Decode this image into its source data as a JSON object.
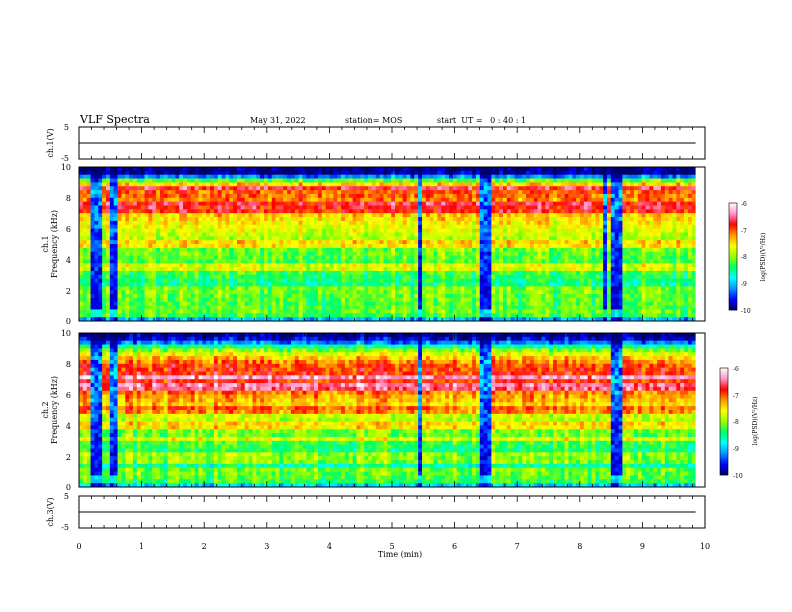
{
  "header": {
    "title": "VLF Spectra",
    "date": "May 31, 2022",
    "station": "station= MOS",
    "start": "start  UT =   0 : 40 : 1"
  },
  "chart_data": [
    {
      "type": "line",
      "panel": "ch1-waveform",
      "ylabel": "ch.1(V)",
      "ylim": [
        -5,
        5
      ],
      "yticks": [
        "5",
        "-5"
      ],
      "x": [
        0,
        2,
        4,
        6,
        8,
        9.85
      ],
      "values": [
        0,
        0,
        0,
        0,
        0,
        0
      ]
    },
    {
      "type": "heatmap",
      "panel": "ch1-spectrogram",
      "ylabel": "ch.1\nFrequency (kHz)",
      "ylim": [
        0,
        10
      ],
      "yticks": [
        "0",
        "2",
        "4",
        "6",
        "8",
        "10"
      ],
      "xlim": [
        0,
        10
      ],
      "data_end_min": 9.85,
      "colorbar": {
        "label": "log(PSD)(V²/Hz)",
        "range": [
          -10,
          -6
        ],
        "ticks": [
          "-6",
          "-7",
          "-8",
          "-9",
          "-10"
        ]
      },
      "freq_profile_kHz": [
        0,
        0.5,
        1,
        2,
        3,
        4,
        5,
        6,
        7,
        8,
        8.5,
        9,
        9.5,
        10
      ],
      "freq_profile_log_psd": [
        -9.2,
        -8.6,
        -8.7,
        -8.6,
        -8.3,
        -8.2,
        -8.0,
        -7.7,
        -7.4,
        -7.1,
        -7.0,
        -7.6,
        -9.8,
        -10
      ],
      "quiet_intervals_min": [
        [
          0.2,
          0.38
        ],
        [
          0.5,
          0.6
        ],
        [
          5.4,
          5.5
        ],
        [
          6.4,
          6.6
        ],
        [
          8.4,
          8.45
        ],
        [
          8.5,
          8.7
        ]
      ],
      "line_bands_kHz": [
        0.4,
        0.6,
        1.0,
        1.5,
        1.8,
        2.0,
        3.3,
        3.5,
        5.0,
        7.2,
        7.5,
        8.6
      ]
    },
    {
      "type": "heatmap",
      "panel": "ch2-spectrogram",
      "ylabel": "ch.2\nFrequency (kHz)",
      "ylim": [
        0,
        10
      ],
      "yticks": [
        "0",
        "2",
        "4",
        "6",
        "8",
        "10"
      ],
      "xlim": [
        0,
        10
      ],
      "data_end_min": 9.85,
      "colorbar": {
        "label": "log(PSD)(V²/Hz)",
        "range": [
          -10,
          -6
        ],
        "ticks": [
          "-6",
          "-7",
          "-8",
          "-9",
          "-10"
        ]
      },
      "freq_profile_kHz": [
        0,
        0.5,
        1,
        2,
        3,
        4,
        5,
        6,
        7,
        8,
        8.5,
        9,
        9.5,
        10
      ],
      "freq_profile_log_psd": [
        -9.0,
        -8.7,
        -8.6,
        -8.5,
        -8.2,
        -8.0,
        -7.6,
        -7.2,
        -6.8,
        -7.0,
        -7.5,
        -8.2,
        -9.6,
        -10
      ],
      "quiet_intervals_min": [
        [
          0.2,
          0.38
        ],
        [
          0.5,
          0.6
        ],
        [
          5.4,
          5.5
        ],
        [
          6.4,
          6.6
        ],
        [
          8.5,
          8.7
        ]
      ],
      "line_bands_kHz": [
        0.5,
        1.0,
        1.6,
        2.0,
        3.2,
        4.0,
        5.0,
        6.5,
        7.2
      ]
    },
    {
      "type": "line",
      "panel": "ch3-waveform",
      "ylabel": "ch.3(V)",
      "ylim": [
        -5,
        5
      ],
      "yticks": [
        "5",
        "-5"
      ],
      "x": [
        0,
        2,
        4,
        6,
        8,
        9.85
      ],
      "values": [
        0,
        0,
        0,
        0,
        0,
        0
      ],
      "xlabel": "Time (min)",
      "xlim": [
        0,
        10
      ],
      "xticks": [
        "0",
        "1",
        "2",
        "3",
        "4",
        "5",
        "6",
        "7",
        "8",
        "9",
        "10"
      ]
    }
  ],
  "colors": {
    "colormap": [
      "#000066",
      "#0000ff",
      "#0096ff",
      "#00ffff",
      "#00ff64",
      "#96ff00",
      "#ffff00",
      "#ff9600",
      "#ff0000",
      "#ff96c8",
      "#ffffff"
    ]
  }
}
